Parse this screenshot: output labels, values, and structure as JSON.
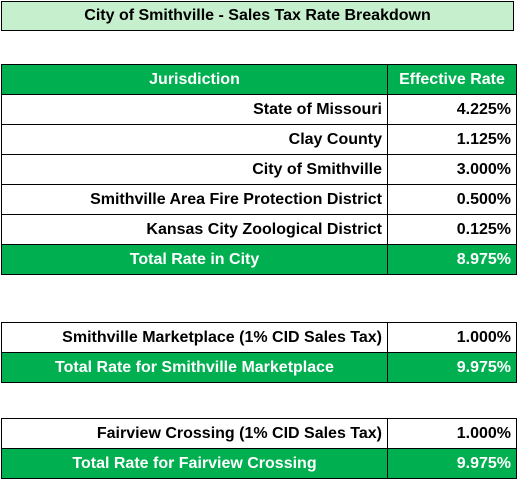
{
  "title": "City of Smithville - Sales Tax Rate Breakdown",
  "header": {
    "jurisdiction": "Jurisdiction",
    "effective_rate": "Effective Rate"
  },
  "rates": [
    {
      "name": "State of Missouri",
      "rate": "4.225%"
    },
    {
      "name": "Clay County",
      "rate": "1.125%"
    },
    {
      "name": "City of Smithville",
      "rate": "3.000%"
    },
    {
      "name": "Smithville Area Fire Protection District",
      "rate": "0.500%"
    },
    {
      "name": "Kansas City Zoological District",
      "rate": "0.125%"
    }
  ],
  "total_city": {
    "label": "Total Rate in City",
    "rate": "8.975%"
  },
  "marketplace": {
    "name": "Smithville Marketplace (1% CID Sales Tax)",
    "rate": "1.000%",
    "total_label": "Total Rate for Smithville Marketplace",
    "total_rate": "9.975%"
  },
  "fairview": {
    "name": "Fairview Crossing (1% CID Sales Tax)",
    "rate": "1.000%",
    "total_label": "Total Rate for Fairview Crossing",
    "total_rate": "9.975%"
  },
  "colors": {
    "title_bg": "#c6efce",
    "green": "#00b050"
  }
}
